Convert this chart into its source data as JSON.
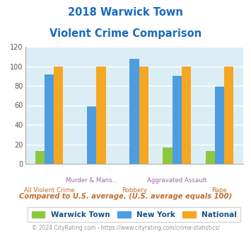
{
  "title_line1": "2018 Warwick Town",
  "title_line2": "Violent Crime Comparison",
  "categories": [
    "All Violent Crime",
    "Murder & Mans...",
    "Robbery",
    "Aggravated Assault",
    "Rape"
  ],
  "warwick_town": [
    13,
    0,
    0,
    17,
    13
  ],
  "new_york": [
    92,
    59,
    108,
    90,
    79
  ],
  "national": [
    100,
    100,
    100,
    100,
    100
  ],
  "color_warwick": "#8dc63f",
  "color_ny": "#4d9de0",
  "color_national": "#f5a623",
  "ylim": [
    0,
    120
  ],
  "yticks": [
    0,
    20,
    40,
    60,
    80,
    100,
    120
  ],
  "bg_color": "#dceef5",
  "title_color": "#1a6bbf",
  "note_color": "#c07030",
  "xlabel_top_color": "#9966aa",
  "xlabel_bot_color": "#c07030",
  "footer_color": "#999999",
  "legend_text_color": "#1a4f8a",
  "note_text": "Compared to U.S. average. (U.S. average equals 100)",
  "footer_text": "© 2024 CityRating.com - https://www.cityrating.com/crime-statistics/",
  "legend_labels": [
    "Warwick Town",
    "New York",
    "National"
  ],
  "bar_width": 0.22
}
